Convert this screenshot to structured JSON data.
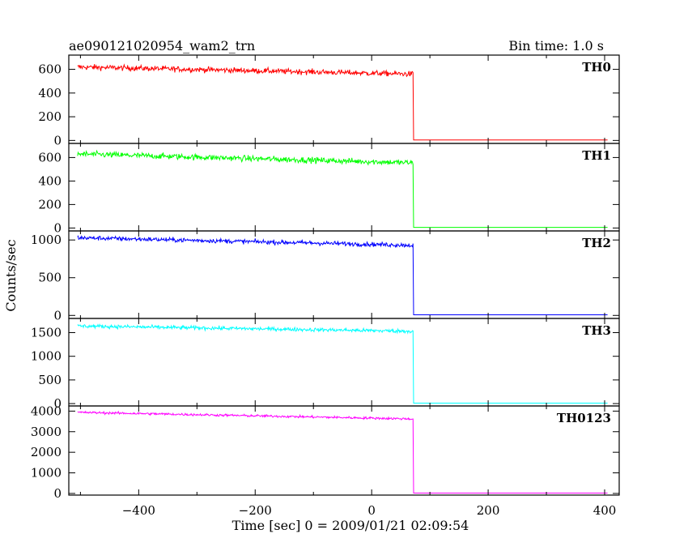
{
  "header": {
    "title": "ae090121020954_wam2_trn",
    "bin_time": "Bin time: 1.0 s"
  },
  "chart_data": {
    "type": "line",
    "xlabel": "Time [sec] 0 = 2009/01/21 02:09:54",
    "ylabel": "Counts/sec",
    "xlim": [
      -520,
      425
    ],
    "x_ticks": [
      -400,
      -200,
      0,
      200,
      400
    ],
    "x_tick_labels": [
      "−400",
      "−200",
      "0",
      "200",
      "400"
    ],
    "drop_time": 72,
    "x_start": -505,
    "x_end": 405,
    "panels": [
      {
        "name": "TH0",
        "color": "#ff0000",
        "ylim": [
          -25,
          720
        ],
        "y_ticks": [
          0,
          200,
          400,
          600
        ],
        "y_tick_labels": [
          "0",
          "200",
          "400",
          "600"
        ],
        "level_start": 620,
        "level_end": 560,
        "noise": 22,
        "level_after": 4
      },
      {
        "name": "TH1",
        "color": "#00ff00",
        "ylim": [
          -25,
          720
        ],
        "y_ticks": [
          0,
          200,
          400,
          600
        ],
        "y_tick_labels": [
          "0",
          "200",
          "400",
          "600"
        ],
        "level_start": 630,
        "level_end": 555,
        "noise": 24,
        "level_after": 5
      },
      {
        "name": "TH2",
        "color": "#0000ff",
        "ylim": [
          -40,
          1120
        ],
        "y_ticks": [
          0,
          500,
          1000
        ],
        "y_tick_labels": [
          "0",
          "500",
          "1000"
        ],
        "level_start": 1030,
        "level_end": 930,
        "noise": 28,
        "level_after": 8
      },
      {
        "name": "TH3",
        "color": "#00ffff",
        "ylim": [
          -50,
          1800
        ],
        "y_ticks": [
          0,
          500,
          1000,
          1500
        ],
        "y_tick_labels": [
          "0",
          "500",
          "1000",
          "1500"
        ],
        "level_start": 1640,
        "level_end": 1530,
        "noise": 38,
        "level_after": 10
      },
      {
        "name": "TH0123",
        "color": "#ff00ff",
        "ylim": [
          -80,
          4250
        ],
        "y_ticks": [
          0,
          1000,
          2000,
          3000,
          4000
        ],
        "y_tick_labels": [
          "0",
          "1000",
          "2000",
          "3000",
          "4000"
        ],
        "level_start": 3940,
        "level_end": 3620,
        "noise": 55,
        "level_after": 20
      }
    ]
  }
}
